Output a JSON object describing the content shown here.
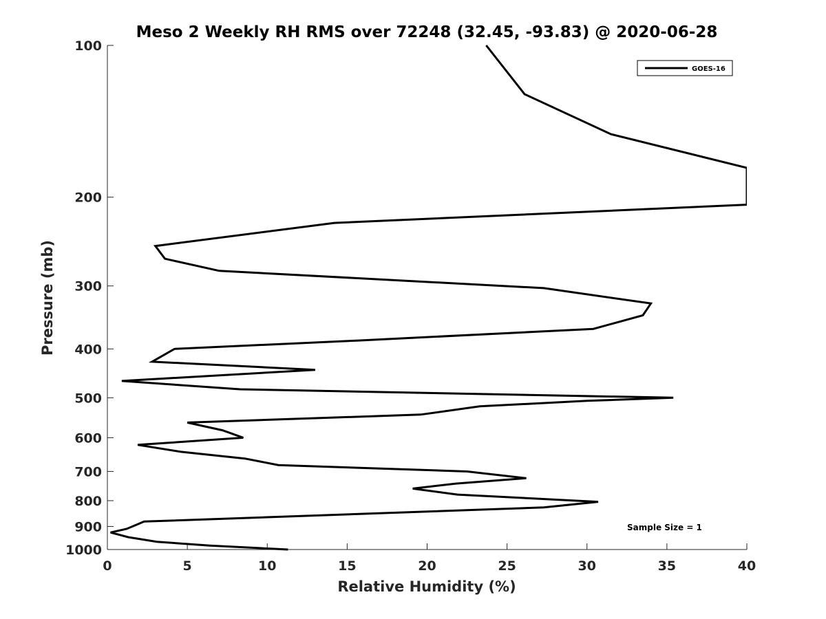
{
  "chart_data": {
    "type": "line",
    "title": "Meso 2 Weekly RH RMS over 72248 (32.45, -93.83) @ 2020-06-28",
    "xlabel": "Relative Humidity (%)",
    "ylabel": "Pressure (mb)",
    "xlim": [
      0,
      40
    ],
    "ylim": [
      100,
      1000
    ],
    "y_scale": "log",
    "y_reversed": true,
    "grid": false,
    "legend_position": "top-right",
    "x_ticks": [
      0,
      5,
      10,
      15,
      20,
      25,
      30,
      35,
      40
    ],
    "x_tick_labels": [
      "0",
      "5",
      "10",
      "15",
      "20",
      "25",
      "30",
      "35",
      "40"
    ],
    "y_ticks": [
      100,
      200,
      300,
      400,
      500,
      600,
      700,
      800,
      900,
      1000
    ],
    "y_tick_labels": [
      "100",
      "200",
      "300",
      "400",
      "500",
      "600",
      "700",
      "800",
      "900",
      "1000"
    ],
    "annotations": [
      "Sample Size = 1"
    ],
    "series": [
      {
        "name": "GOES-16",
        "color": "#000000",
        "points": [
          [
            23.7,
            100
          ],
          [
            26.1,
            125
          ],
          [
            31.5,
            150
          ],
          [
            40,
            175
          ],
          [
            40,
            207
          ],
          [
            14.2,
            225
          ],
          [
            3.0,
            250
          ],
          [
            3.6,
            265
          ],
          [
            7.0,
            280
          ],
          [
            27.3,
            303
          ],
          [
            34.0,
            325
          ],
          [
            33.5,
            343
          ],
          [
            30.4,
            365
          ],
          [
            15.7,
            385
          ],
          [
            4.2,
            400
          ],
          [
            2.8,
            424
          ],
          [
            13.0,
            440
          ],
          [
            0.9,
            463
          ],
          [
            8.3,
            481
          ],
          [
            35.4,
            500
          ],
          [
            30.0,
            507
          ],
          [
            23.3,
            520
          ],
          [
            19.6,
            540
          ],
          [
            5.0,
            560
          ],
          [
            7.2,
            580
          ],
          [
            8.5,
            600
          ],
          [
            1.9,
            620
          ],
          [
            4.6,
            640
          ],
          [
            8.6,
            660
          ],
          [
            10.7,
            680
          ],
          [
            22.5,
            700
          ],
          [
            26.2,
            722
          ],
          [
            21.8,
            740
          ],
          [
            19.1,
            757
          ],
          [
            21.9,
            778
          ],
          [
            30.7,
            804
          ],
          [
            27.3,
            825
          ],
          [
            2.3,
            880
          ],
          [
            1.2,
            910
          ],
          [
            0.2,
            925
          ],
          [
            1.3,
            945
          ],
          [
            3.1,
            965
          ],
          [
            6.4,
            982
          ],
          [
            11.3,
            1000
          ]
        ]
      }
    ]
  }
}
